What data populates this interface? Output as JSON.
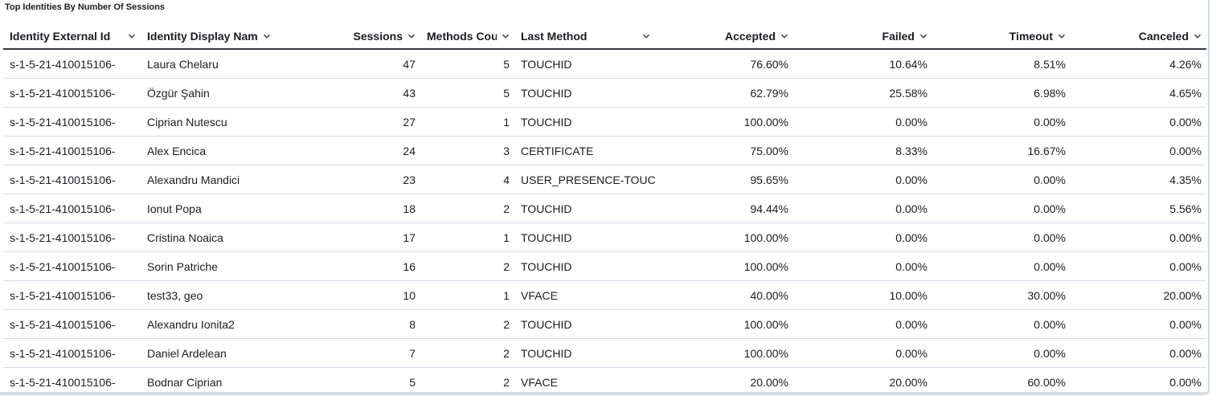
{
  "title": "Top Identities By Number Of Sessions",
  "table": {
    "columns": [
      "Identity External Id",
      "Identity Display Nam",
      "Sessions",
      "Methods Cou",
      "Last Method",
      "Accepted",
      "Failed",
      "Timeout",
      "Canceled"
    ],
    "rows": [
      [
        "s-1-5-21-410015106-",
        "Laura Chelaru",
        "47",
        "5",
        "TOUCHID",
        "76.60%",
        "10.64%",
        "8.51%",
        "4.26%"
      ],
      [
        "s-1-5-21-410015106-",
        "Özgür Şahin",
        "43",
        "5",
        "TOUCHID",
        "62.79%",
        "25.58%",
        "6.98%",
        "4.65%"
      ],
      [
        "s-1-5-21-410015106-",
        "Ciprian Nutescu",
        "27",
        "1",
        "TOUCHID",
        "100.00%",
        "0.00%",
        "0.00%",
        "0.00%"
      ],
      [
        "s-1-5-21-410015106-",
        "Alex Encica",
        "24",
        "3",
        "CERTIFICATE",
        "75.00%",
        "8.33%",
        "16.67%",
        "0.00%"
      ],
      [
        "s-1-5-21-410015106-",
        "Alexandru Mandici",
        "23",
        "4",
        "USER_PRESENCE-TOUC",
        "95.65%",
        "0.00%",
        "0.00%",
        "4.35%"
      ],
      [
        "s-1-5-21-410015106-",
        "Ionut Popa",
        "18",
        "2",
        "TOUCHID",
        "94.44%",
        "0.00%",
        "0.00%",
        "5.56%"
      ],
      [
        "s-1-5-21-410015106-",
        "Cristina Noaica",
        "17",
        "1",
        "TOUCHID",
        "100.00%",
        "0.00%",
        "0.00%",
        "0.00%"
      ],
      [
        "s-1-5-21-410015106-",
        "Sorin Patriche",
        "16",
        "2",
        "TOUCHID",
        "100.00%",
        "0.00%",
        "0.00%",
        "0.00%"
      ],
      [
        "s-1-5-21-410015106-",
        "test33, geo",
        "10",
        "1",
        "VFACE",
        "40.00%",
        "10.00%",
        "30.00%",
        "20.00%"
      ],
      [
        "s-1-5-21-410015106-",
        "Alexandru Ionita2",
        "8",
        "2",
        "TOUCHID",
        "100.00%",
        "0.00%",
        "0.00%",
        "0.00%"
      ],
      [
        "s-1-5-21-410015106-",
        "Daniel Ardelean",
        "7",
        "2",
        "TOUCHID",
        "100.00%",
        "0.00%",
        "0.00%",
        "0.00%"
      ],
      [
        "s-1-5-21-410015106-",
        "Bodnar Ciprian",
        "5",
        "2",
        "VFACE",
        "20.00%",
        "20.00%",
        "60.00%",
        "0.00%"
      ]
    ]
  }
}
